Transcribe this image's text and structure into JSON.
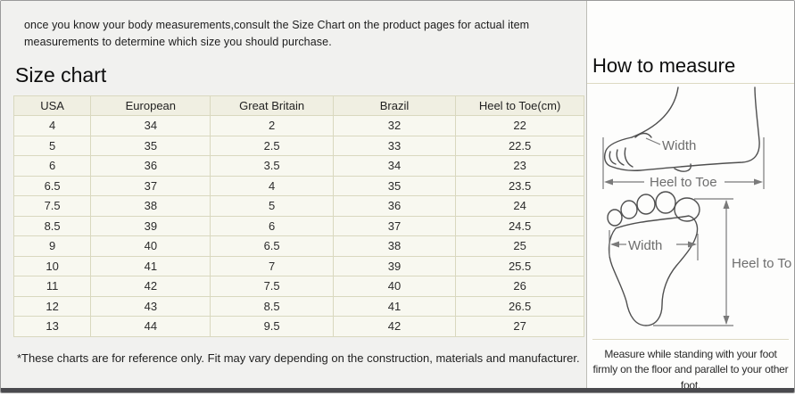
{
  "intro_text": "once you know your body measurements,consult the Size Chart on the product pages for actual item measurements to determine which size you should purchase.",
  "size_chart": {
    "title": "Size chart",
    "columns": [
      "USA",
      "European",
      "Great Britain",
      "Brazil",
      "Heel to Toe(cm)"
    ],
    "rows": [
      [
        "4",
        "34",
        "2",
        "32",
        "22"
      ],
      [
        "5",
        "35",
        "2.5",
        "33",
        "22.5"
      ],
      [
        "6",
        "36",
        "3.5",
        "34",
        "23"
      ],
      [
        "6.5",
        "37",
        "4",
        "35",
        "23.5"
      ],
      [
        "7.5",
        "38",
        "5",
        "36",
        "24"
      ],
      [
        "8.5",
        "39",
        "6",
        "37",
        "24.5"
      ],
      [
        "9",
        "40",
        "6.5",
        "38",
        "25"
      ],
      [
        "10",
        "41",
        "7",
        "39",
        "25.5"
      ],
      [
        "11",
        "42",
        "7.5",
        "40",
        "26"
      ],
      [
        "12",
        "43",
        "8.5",
        "41",
        "26.5"
      ],
      [
        "13",
        "44",
        "9.5",
        "42",
        "27"
      ]
    ],
    "footnote": "*These charts are for reference only. Fit may vary depending on the construction, materials and manufacturer."
  },
  "how_to_measure": {
    "title": "How to measure",
    "side_view": {
      "width_label": "Width",
      "length_label": "Heel to Toe"
    },
    "sole_view": {
      "width_label": "Width",
      "length_label": "Heel to Toe"
    },
    "note": "Measure while standing with your foot firmly on the floor and parallel to your other foot."
  },
  "colors": {
    "table_border": "#d9d8bf",
    "table_row_bg": "#f8f8f0",
    "table_header_bg": "#f0efe2",
    "panel_left_bg": "#f1f1ef",
    "panel_right_bg": "#fdfdfc",
    "outer_border": "#9a9a9a",
    "bottom_strip": "#4a4a4e"
  }
}
